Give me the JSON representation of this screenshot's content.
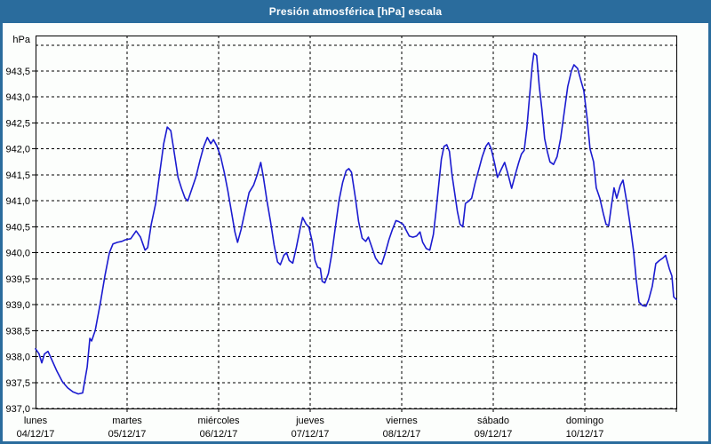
{
  "window": {
    "title": "Presión atmosférica [hPa] escala",
    "title_bg": "#2a6c9d",
    "border_color": "#2a6c9d",
    "background": "#fcfefc"
  },
  "chart_data": {
    "type": "line",
    "title": "Presión atmosférica [hPa] escala",
    "ylabel": "hPa",
    "y_unit_label": "hPa",
    "ylim": [
      937.0,
      944.2
    ],
    "x_range_days": [
      0,
      7
    ],
    "grid": "dashed",
    "legend_position": "none",
    "line_color": "#1b1bd0",
    "grid_color": "#000000",
    "y_ticks": [
      {
        "v": 937.0,
        "label": "937,0"
      },
      {
        "v": 937.5,
        "label": "937,5"
      },
      {
        "v": 938.0,
        "label": "938,0"
      },
      {
        "v": 938.5,
        "label": "938,5"
      },
      {
        "v": 939.0,
        "label": "939,0"
      },
      {
        "v": 939.5,
        "label": "939,5"
      },
      {
        "v": 940.0,
        "label": "940,0"
      },
      {
        "v": 940.5,
        "label": "940,5"
      },
      {
        "v": 941.0,
        "label": "941,0"
      },
      {
        "v": 941.5,
        "label": "941,5"
      },
      {
        "v": 942.0,
        "label": "942,0"
      },
      {
        "v": 942.5,
        "label": "942,5"
      },
      {
        "v": 943.0,
        "label": "943,0"
      },
      {
        "v": 943.5,
        "label": "943,5"
      }
    ],
    "y_grid_unlabeled": [
      944.0
    ],
    "x_days": [
      {
        "name": "lunes",
        "date": "04/12/17"
      },
      {
        "name": "martes",
        "date": "05/12/17"
      },
      {
        "name": "miércoles",
        "date": "06/12/17"
      },
      {
        "name": "jueves",
        "date": "07/12/17"
      },
      {
        "name": "viernes",
        "date": "08/12/17"
      },
      {
        "name": "sábado",
        "date": "09/12/17"
      },
      {
        "name": "domingo",
        "date": "10/12/17"
      }
    ],
    "series": [
      {
        "name": "Presión atmosférica [hPa]",
        "points": [
          [
            0.0,
            938.15
          ],
          [
            0.039,
            938.05
          ],
          [
            0.068,
            937.88
          ],
          [
            0.097,
            938.05
          ],
          [
            0.136,
            938.1
          ],
          [
            0.175,
            937.95
          ],
          [
            0.233,
            937.72
          ],
          [
            0.292,
            937.52
          ],
          [
            0.35,
            937.4
          ],
          [
            0.408,
            937.32
          ],
          [
            0.467,
            937.28
          ],
          [
            0.515,
            937.3
          ],
          [
            0.564,
            937.8
          ],
          [
            0.593,
            938.35
          ],
          [
            0.613,
            938.3
          ],
          [
            0.651,
            938.5
          ],
          [
            0.71,
            939.05
          ],
          [
            0.758,
            939.56
          ],
          [
            0.807,
            940.0
          ],
          [
            0.846,
            940.17
          ],
          [
            0.894,
            940.2
          ],
          [
            0.943,
            940.22
          ],
          [
            0.982,
            940.25
          ],
          [
            1.04,
            940.27
          ],
          [
            1.099,
            940.42
          ],
          [
            1.147,
            940.3
          ],
          [
            1.196,
            940.05
          ],
          [
            1.225,
            940.1
          ],
          [
            1.264,
            940.55
          ],
          [
            1.313,
            940.95
          ],
          [
            1.361,
            941.6
          ],
          [
            1.4,
            942.1
          ],
          [
            1.439,
            942.42
          ],
          [
            1.478,
            942.35
          ],
          [
            1.517,
            941.9
          ],
          [
            1.556,
            941.45
          ],
          [
            1.594,
            941.24
          ],
          [
            1.633,
            941.05
          ],
          [
            1.663,
            941.0
          ],
          [
            1.702,
            941.2
          ],
          [
            1.75,
            941.45
          ],
          [
            1.799,
            941.8
          ],
          [
            1.838,
            942.05
          ],
          [
            1.877,
            942.22
          ],
          [
            1.915,
            942.1
          ],
          [
            1.944,
            942.18
          ],
          [
            1.983,
            942.05
          ],
          [
            2.022,
            941.85
          ],
          [
            2.061,
            941.55
          ],
          [
            2.1,
            941.2
          ],
          [
            2.139,
            940.8
          ],
          [
            2.178,
            940.4
          ],
          [
            2.207,
            940.2
          ],
          [
            2.246,
            940.45
          ],
          [
            2.294,
            940.85
          ],
          [
            2.333,
            941.16
          ],
          [
            2.382,
            941.3
          ],
          [
            2.421,
            941.5
          ],
          [
            2.46,
            941.74
          ],
          [
            2.489,
            941.45
          ],
          [
            2.528,
            941.0
          ],
          [
            2.567,
            940.6
          ],
          [
            2.606,
            940.15
          ],
          [
            2.644,
            939.82
          ],
          [
            2.674,
            939.77
          ],
          [
            2.713,
            939.95
          ],
          [
            2.742,
            940.0
          ],
          [
            2.771,
            939.85
          ],
          [
            2.81,
            939.8
          ],
          [
            2.849,
            940.1
          ],
          [
            2.888,
            940.45
          ],
          [
            2.917,
            940.68
          ],
          [
            2.956,
            940.55
          ],
          [
            2.985,
            940.5
          ],
          [
            3.024,
            940.2
          ],
          [
            3.053,
            939.85
          ],
          [
            3.082,
            939.72
          ],
          [
            3.111,
            939.7
          ],
          [
            3.131,
            939.45
          ],
          [
            3.16,
            939.42
          ],
          [
            3.199,
            939.6
          ],
          [
            3.238,
            940.0
          ],
          [
            3.276,
            940.5
          ],
          [
            3.315,
            941.0
          ],
          [
            3.354,
            941.35
          ],
          [
            3.393,
            941.58
          ],
          [
            3.422,
            941.62
          ],
          [
            3.451,
            941.55
          ],
          [
            3.49,
            941.1
          ],
          [
            3.529,
            940.6
          ],
          [
            3.568,
            940.28
          ],
          [
            3.607,
            940.22
          ],
          [
            3.636,
            940.3
          ],
          [
            3.675,
            940.1
          ],
          [
            3.714,
            939.9
          ],
          [
            3.753,
            939.8
          ],
          [
            3.782,
            939.78
          ],
          [
            3.821,
            940.0
          ],
          [
            3.86,
            940.25
          ],
          [
            3.899,
            940.45
          ],
          [
            3.937,
            940.62
          ],
          [
            3.967,
            940.6
          ],
          [
            4.015,
            940.55
          ],
          [
            4.044,
            940.45
          ],
          [
            4.083,
            940.32
          ],
          [
            4.122,
            940.3
          ],
          [
            4.161,
            940.32
          ],
          [
            4.2,
            940.4
          ],
          [
            4.229,
            940.2
          ],
          [
            4.268,
            940.08
          ],
          [
            4.307,
            940.05
          ],
          [
            4.346,
            940.35
          ],
          [
            4.375,
            940.8
          ],
          [
            4.404,
            941.3
          ],
          [
            4.433,
            941.8
          ],
          [
            4.462,
            942.05
          ],
          [
            4.492,
            942.08
          ],
          [
            4.521,
            941.95
          ],
          [
            4.55,
            941.5
          ],
          [
            4.579,
            941.15
          ],
          [
            4.608,
            940.8
          ],
          [
            4.637,
            940.55
          ],
          [
            4.667,
            940.5
          ],
          [
            4.696,
            940.95
          ],
          [
            4.735,
            941.0
          ],
          [
            4.764,
            941.05
          ],
          [
            4.803,
            941.35
          ],
          [
            4.842,
            941.6
          ],
          [
            4.88,
            941.85
          ],
          [
            4.919,
            942.05
          ],
          [
            4.948,
            942.12
          ],
          [
            4.978,
            942.0
          ],
          [
            5.017,
            941.7
          ],
          [
            5.046,
            941.45
          ],
          [
            5.085,
            941.6
          ],
          [
            5.124,
            941.74
          ],
          [
            5.163,
            941.5
          ],
          [
            5.201,
            941.24
          ],
          [
            5.24,
            941.5
          ],
          [
            5.279,
            941.74
          ],
          [
            5.308,
            941.9
          ],
          [
            5.338,
            941.97
          ],
          [
            5.367,
            942.4
          ],
          [
            5.396,
            943.0
          ],
          [
            5.425,
            943.6
          ],
          [
            5.444,
            943.84
          ],
          [
            5.474,
            943.8
          ],
          [
            5.503,
            943.2
          ],
          [
            5.532,
            942.75
          ],
          [
            5.561,
            942.2
          ],
          [
            5.59,
            941.95
          ],
          [
            5.619,
            941.75
          ],
          [
            5.658,
            941.7
          ],
          [
            5.697,
            941.85
          ],
          [
            5.736,
            942.2
          ],
          [
            5.775,
            942.7
          ],
          [
            5.814,
            943.2
          ],
          [
            5.853,
            943.5
          ],
          [
            5.882,
            943.62
          ],
          [
            5.921,
            943.55
          ],
          [
            5.96,
            943.3
          ],
          [
            5.989,
            943.12
          ],
          [
            6.028,
            942.55
          ],
          [
            6.057,
            942.0
          ],
          [
            6.096,
            941.75
          ],
          [
            6.125,
            941.25
          ],
          [
            6.164,
            941.05
          ],
          [
            6.203,
            940.75
          ],
          [
            6.232,
            940.55
          ],
          [
            6.261,
            940.52
          ],
          [
            6.29,
            940.9
          ],
          [
            6.319,
            941.25
          ],
          [
            6.349,
            941.05
          ],
          [
            6.388,
            941.3
          ],
          [
            6.417,
            941.4
          ],
          [
            6.456,
            941.0
          ],
          [
            6.494,
            940.55
          ],
          [
            6.533,
            940.03
          ],
          [
            6.562,
            939.48
          ],
          [
            6.592,
            939.05
          ],
          [
            6.631,
            938.98
          ],
          [
            6.669,
            938.97
          ],
          [
            6.699,
            939.1
          ],
          [
            6.737,
            939.35
          ],
          [
            6.776,
            939.79
          ],
          [
            6.815,
            939.85
          ],
          [
            6.854,
            939.9
          ],
          [
            6.883,
            939.95
          ],
          [
            6.922,
            939.7
          ],
          [
            6.951,
            939.55
          ],
          [
            6.971,
            939.15
          ],
          [
            7.0,
            939.1
          ]
        ]
      }
    ]
  }
}
